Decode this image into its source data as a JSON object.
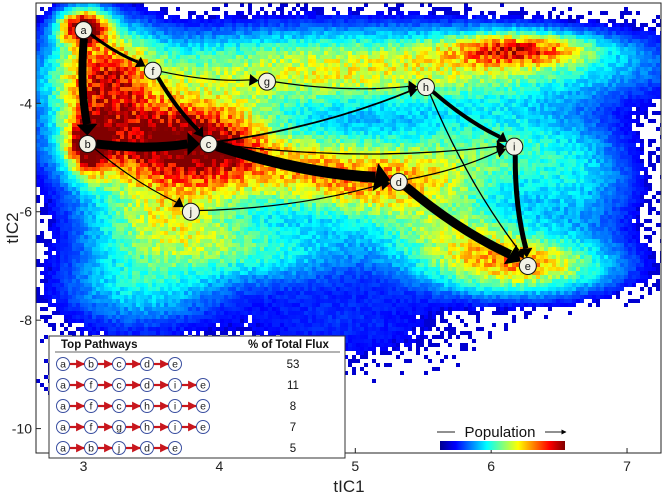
{
  "chart_data": {
    "type": "scatter",
    "title": "",
    "xlabel": "tIC1",
    "ylabel": "tIC2",
    "xlim": [
      2.65,
      7.25
    ],
    "ylim": [
      -10.45,
      -2.15
    ],
    "xticks": [
      3,
      4,
      5,
      6,
      7
    ],
    "yticks": [
      -4,
      -6,
      -8,
      -10
    ],
    "background": "2D population density histogram (blue = low, red = high)",
    "nodes": [
      {
        "id": "a",
        "x": 3.0,
        "y": -2.65
      },
      {
        "id": "b",
        "x": 3.03,
        "y": -4.75
      },
      {
        "id": "c",
        "x": 3.92,
        "y": -4.75
      },
      {
        "id": "d",
        "x": 5.32,
        "y": -5.45
      },
      {
        "id": "e",
        "x": 6.27,
        "y": -7.0
      },
      {
        "id": "f",
        "x": 3.51,
        "y": -3.4
      },
      {
        "id": "g",
        "x": 4.35,
        "y": -3.6
      },
      {
        "id": "h",
        "x": 5.52,
        "y": -3.7
      },
      {
        "id": "i",
        "x": 6.17,
        "y": -4.8
      },
      {
        "id": "j",
        "x": 3.79,
        "y": -6.0
      }
    ],
    "edges": [
      {
        "from": "a",
        "to": "b",
        "weight": 8
      },
      {
        "from": "a",
        "to": "f",
        "weight": 3
      },
      {
        "from": "b",
        "to": "c",
        "weight": 9
      },
      {
        "from": "b",
        "to": "j",
        "weight": 1.2
      },
      {
        "from": "c",
        "to": "d",
        "weight": 11
      },
      {
        "from": "c",
        "to": "h",
        "weight": 1.8
      },
      {
        "from": "c",
        "to": "i",
        "weight": 1.3
      },
      {
        "from": "d",
        "to": "e",
        "weight": 9
      },
      {
        "from": "d",
        "to": "i",
        "weight": 1.2
      },
      {
        "from": "f",
        "to": "c",
        "weight": 4
      },
      {
        "from": "f",
        "to": "g",
        "weight": 1.2
      },
      {
        "from": "g",
        "to": "h",
        "weight": 1.2
      },
      {
        "from": "h",
        "to": "i",
        "weight": 4
      },
      {
        "from": "h",
        "to": "e",
        "weight": 1.3
      },
      {
        "from": "i",
        "to": "e",
        "weight": 5
      },
      {
        "from": "j",
        "to": "d",
        "weight": 1.2
      }
    ],
    "density_blobs": [
      {
        "x": 3.0,
        "y": -2.6,
        "sx": 0.12,
        "sy": 0.22,
        "w": 1.0
      },
      {
        "x": 3.05,
        "y": -4.75,
        "sx": 0.1,
        "sy": 0.35,
        "w": 1.0
      },
      {
        "x": 3.45,
        "y": -4.7,
        "sx": 0.4,
        "sy": 0.55,
        "w": 0.82
      },
      {
        "x": 3.15,
        "y": -3.5,
        "sx": 0.25,
        "sy": 0.6,
        "w": 0.7
      },
      {
        "x": 3.95,
        "y": -4.8,
        "sx": 0.3,
        "sy": 0.5,
        "w": 0.7
      },
      {
        "x": 3.6,
        "y": -6.1,
        "sx": 0.4,
        "sy": 0.6,
        "w": 0.48
      },
      {
        "x": 4.6,
        "y": -5.2,
        "sx": 0.4,
        "sy": 0.5,
        "w": 0.45
      },
      {
        "x": 5.25,
        "y": -5.45,
        "sx": 0.45,
        "sy": 0.5,
        "w": 0.55
      },
      {
        "x": 4.3,
        "y": -3.5,
        "sx": 0.9,
        "sy": 0.55,
        "w": 0.38
      },
      {
        "x": 5.8,
        "y": -3.3,
        "sx": 1.0,
        "sy": 0.45,
        "w": 0.4
      },
      {
        "x": 6.2,
        "y": -3.0,
        "sx": 0.35,
        "sy": 0.2,
        "w": 0.6
      },
      {
        "x": 6.0,
        "y": -4.8,
        "sx": 0.45,
        "sy": 0.6,
        "w": 0.32
      },
      {
        "x": 6.2,
        "y": -7.0,
        "sx": 0.45,
        "sy": 0.35,
        "w": 0.62
      },
      {
        "x": 5.75,
        "y": -6.4,
        "sx": 0.4,
        "sy": 0.4,
        "w": 0.38
      },
      {
        "x": 4.3,
        "y": -6.7,
        "sx": 0.5,
        "sy": 0.4,
        "w": 0.28
      },
      {
        "x": 3.4,
        "y": -7.4,
        "sx": 0.4,
        "sy": 0.5,
        "w": 0.25
      },
      {
        "x": 6.65,
        "y": -5.5,
        "sx": 0.3,
        "sy": 0.8,
        "w": 0.2
      },
      {
        "x": 3.3,
        "y": -9.0,
        "sx": 0.35,
        "sy": 0.5,
        "w": 0.08
      },
      {
        "x": 4.9,
        "y": -8.0,
        "sx": 0.6,
        "sy": 0.6,
        "w": 0.1
      }
    ],
    "colorbar": {
      "label": "Population"
    },
    "table": {
      "headers": [
        "Top Pathways",
        "% of Total Flux"
      ],
      "rows": [
        {
          "path": [
            "a",
            "b",
            "c",
            "d",
            "e"
          ],
          "flux": "53"
        },
        {
          "path": [
            "a",
            "f",
            "c",
            "d",
            "i",
            "e"
          ],
          "flux": "11"
        },
        {
          "path": [
            "a",
            "f",
            "c",
            "h",
            "i",
            "e"
          ],
          "flux": "8"
        },
        {
          "path": [
            "a",
            "f",
            "g",
            "h",
            "i",
            "e"
          ],
          "flux": "7"
        },
        {
          "path": [
            "a",
            "b",
            "j",
            "d",
            "e"
          ],
          "flux": "5"
        }
      ]
    }
  }
}
